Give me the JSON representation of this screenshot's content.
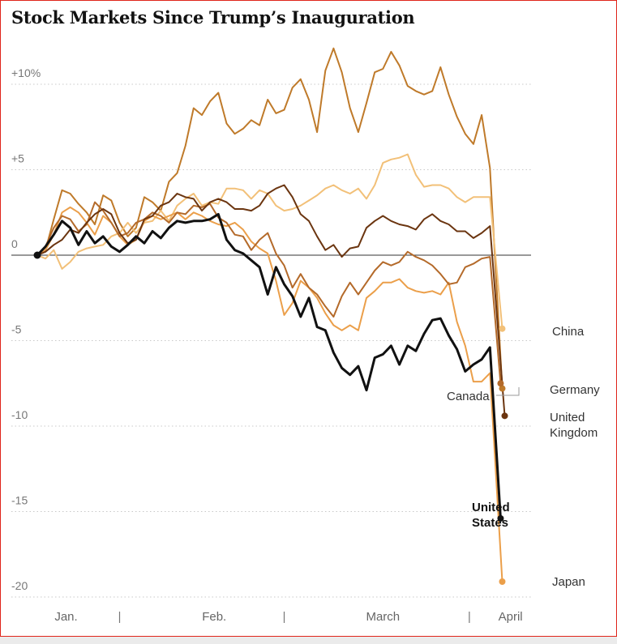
{
  "chart_data": {
    "type": "line",
    "title": "Stock Markets Since Trump’s Inauguration",
    "ylim": [
      -20.8,
      12.2
    ],
    "xlim": [
      0,
      60
    ],
    "y_ticks": [
      {
        "value": 10,
        "label": "+10%"
      },
      {
        "value": 5,
        "label": "+5"
      },
      {
        "value": 0,
        "label": "0"
      },
      {
        "value": -5,
        "label": "-5"
      },
      {
        "value": -10,
        "label": "-10"
      },
      {
        "value": -15,
        "label": "-15"
      },
      {
        "value": -20,
        "label": "-20"
      }
    ],
    "x_month_labels": [
      {
        "x": 3.5,
        "label": "Jan."
      },
      {
        "x": 21.5,
        "label": "Feb."
      },
      {
        "x": 42,
        "label": "March"
      },
      {
        "x": 57.5,
        "label": "April"
      }
    ],
    "x_dividers": [
      10,
      30,
      52.5
    ],
    "grid": "dotted horizontal",
    "colors": {
      "China": "#f2c078",
      "Japan": "#eb9f4a",
      "Germany": "#bf7a2a",
      "Canada": "#b46a2a",
      "United Kingdom": "#6b3510",
      "United States": "#111111",
      "zero_line": "#333333",
      "grid": "#c8c8c8"
    },
    "series": [
      {
        "name": "Germany",
        "x": [
          0,
          1,
          2,
          3,
          4,
          5,
          6,
          7,
          8,
          9,
          10,
          11,
          12,
          13,
          14,
          15,
          16,
          17,
          18,
          19,
          20,
          21,
          22,
          23,
          24,
          25,
          26,
          27,
          28,
          29,
          30,
          31,
          32,
          33,
          34,
          35,
          36,
          37,
          38,
          39,
          40,
          41,
          42,
          43,
          44,
          45,
          46,
          47,
          48,
          49,
          50,
          51,
          52,
          53,
          54,
          55
        ],
        "values": [
          0,
          0.3,
          2.1,
          3.8,
          3.6,
          3,
          2.5,
          1.8,
          3.5,
          3.2,
          1.9,
          1.1,
          1.6,
          3.4,
          3.1,
          2.6,
          4.3,
          4.8,
          6.4,
          8.6,
          8.2,
          9.0,
          9.5,
          7.7,
          7.1,
          7.4,
          7.9,
          7.6,
          9.1,
          8.3,
          8.5,
          9.8,
          10.3,
          9.1,
          7.2,
          10.8,
          12.1,
          10.7,
          8.6,
          7.2,
          8.9,
          10.7,
          10.9,
          11.9,
          11.1,
          9.9,
          9.6,
          9.4,
          9.6,
          11.0,
          9.4,
          8.1,
          7.1,
          6.5,
          8.2,
          5.1
        ],
        "end": {
          "x": 56.5,
          "y": -7.8
        }
      },
      {
        "name": "China",
        "x": [
          0,
          1,
          2,
          3,
          4,
          5,
          6,
          7,
          8,
          9,
          10,
          11,
          12,
          13,
          14,
          15,
          16,
          17,
          18,
          19,
          20,
          21,
          22,
          23,
          24,
          25,
          26,
          27,
          28,
          29,
          30,
          31,
          32,
          33,
          34,
          35,
          36,
          37,
          38,
          39,
          40,
          41,
          42,
          43,
          44,
          45,
          46,
          47,
          48,
          49,
          50,
          51,
          52,
          53,
          54,
          55
        ],
        "values": [
          0,
          -0.2,
          0.3,
          -0.8,
          -0.4,
          0.2,
          0.4,
          0.5,
          0.6,
          1.1,
          1.3,
          1.9,
          1.3,
          1.9,
          2.0,
          2.6,
          2.0,
          2.9,
          3.3,
          3.6,
          2.9,
          3.1,
          3.0,
          3.9,
          3.9,
          3.8,
          3.3,
          3.8,
          3.6,
          2.9,
          2.6,
          2.7,
          2.9,
          3.2,
          3.5,
          3.9,
          4.1,
          3.8,
          3.6,
          3.9,
          3.3,
          4.1,
          5.4,
          5.6,
          5.7,
          5.9,
          4.7,
          4.0,
          4.1,
          4.1,
          3.9,
          3.4,
          3.1,
          3.4,
          3.4,
          3.4
        ],
        "end": {
          "x": 56.5,
          "y": -4.3
        }
      },
      {
        "name": "Japan",
        "x": [
          0,
          1,
          2,
          3,
          4,
          5,
          6,
          7,
          8,
          9,
          10,
          11,
          12,
          13,
          14,
          15,
          16,
          17,
          18,
          19,
          20,
          21,
          22,
          23,
          24,
          25,
          26,
          27,
          28,
          29,
          30,
          31,
          32,
          33,
          34,
          35,
          36,
          37,
          38,
          39,
          40,
          41,
          42,
          43,
          44,
          45,
          46,
          47,
          48,
          49,
          50,
          51,
          52,
          53,
          54,
          55
        ],
        "values": [
          0,
          0.3,
          1.2,
          2.5,
          2.8,
          2.5,
          1.9,
          1.2,
          2.3,
          1.9,
          1.1,
          0.6,
          0.9,
          2.0,
          2.3,
          2.1,
          2.3,
          2.5,
          2.1,
          2.5,
          2.3,
          2.0,
          1.8,
          1.7,
          1.9,
          1.5,
          0.8,
          0.4,
          0.1,
          -1.5,
          -3.5,
          -2.8,
          -1.5,
          -1.9,
          -2.5,
          -3.4,
          -4.1,
          -4.4,
          -4.1,
          -4.4,
          -2.5,
          -2.1,
          -1.6,
          -1.6,
          -1.4,
          -1.9,
          -2.1,
          -2.2,
          -2.1,
          -2.3,
          -1.6,
          -3.9,
          -5.3,
          -7.4,
          -7.4,
          -6.9
        ],
        "end": {
          "x": 56.5,
          "y": -19.1
        }
      },
      {
        "name": "Canada",
        "x": [
          0,
          1,
          2,
          3,
          4,
          5,
          6,
          7,
          8,
          9,
          10,
          11,
          12,
          13,
          14,
          15,
          16,
          17,
          18,
          19,
          20,
          21,
          22,
          23,
          24,
          25,
          26,
          27,
          28,
          29,
          30,
          31,
          32,
          33,
          34,
          35,
          36,
          37,
          38,
          39,
          40,
          41,
          42,
          43,
          44,
          45,
          46,
          47,
          48,
          49,
          50,
          51,
          52,
          53,
          54,
          55
        ],
        "values": [
          0,
          0.5,
          1.6,
          2.3,
          2.1,
          1.4,
          1.8,
          3.1,
          2.6,
          1.9,
          1.1,
          1.3,
          1.9,
          2.1,
          2.5,
          2.3,
          1.9,
          2.5,
          2.4,
          2.9,
          2.8,
          3.0,
          2.2,
          1.9,
          1.2,
          1.1,
          0.3,
          0.9,
          1.3,
          0.1,
          -0.6,
          -1.9,
          -1.1,
          -1.9,
          -2.3,
          -3.0,
          -3.6,
          -2.4,
          -1.6,
          -2.3,
          -1.6,
          -0.9,
          -0.4,
          -0.6,
          -0.4,
          0.2,
          -0.1,
          -0.3,
          -0.6,
          -1.1,
          -1.7,
          -1.6,
          -0.7,
          -0.5,
          -0.2,
          -0.1
        ],
        "end": {
          "x": 56.3,
          "y": -7.5
        }
      },
      {
        "name": "United Kingdom",
        "x": [
          0,
          1,
          2,
          3,
          4,
          5,
          6,
          7,
          8,
          9,
          10,
          11,
          12,
          13,
          14,
          15,
          16,
          17,
          18,
          19,
          20,
          21,
          22,
          23,
          24,
          25,
          26,
          27,
          28,
          29,
          30,
          31,
          32,
          33,
          34,
          35,
          36,
          37,
          38,
          39,
          40,
          41,
          42,
          43,
          44,
          45,
          46,
          47,
          48,
          49,
          50,
          51,
          52,
          53,
          54,
          55
        ],
        "values": [
          0,
          0.2,
          0.6,
          0.9,
          1.5,
          1.3,
          1.9,
          2.4,
          2.7,
          2.4,
          1.3,
          0.7,
          0.9,
          2.1,
          2.3,
          2.9,
          3.1,
          3.6,
          3.4,
          3.3,
          2.6,
          3.1,
          3.3,
          3.1,
          2.7,
          2.7,
          2.6,
          2.9,
          3.6,
          3.9,
          4.1,
          3.4,
          2.4,
          2.0,
          1.1,
          0.3,
          0.6,
          -0.1,
          0.4,
          0.5,
          1.6,
          2.0,
          2.3,
          2.0,
          1.8,
          1.7,
          1.5,
          2.1,
          2.4,
          2.0,
          1.8,
          1.4,
          1.4,
          1.0,
          1.3,
          1.7
        ],
        "end": {
          "x": 56.8,
          "y": -9.4
        }
      },
      {
        "name": "United States",
        "x": [
          0,
          1,
          2,
          3,
          4,
          5,
          6,
          7,
          8,
          9,
          10,
          11,
          12,
          13,
          14,
          15,
          16,
          17,
          18,
          19,
          20,
          21,
          22,
          23,
          24,
          25,
          26,
          27,
          28,
          29,
          30,
          31,
          32,
          33,
          34,
          35,
          36,
          37,
          38,
          39,
          40,
          41,
          42,
          43,
          44,
          45,
          46,
          47,
          48,
          49,
          50,
          51,
          52,
          53,
          54,
          55
        ],
        "values": [
          0,
          0.5,
          1.2,
          2.0,
          1.6,
          0.6,
          1.4,
          0.7,
          1.1,
          0.5,
          0.2,
          0.6,
          1.1,
          0.7,
          1.4,
          1.0,
          1.6,
          2.0,
          1.9,
          2.0,
          2.0,
          2.1,
          2.4,
          0.9,
          0.3,
          0.1,
          -0.3,
          -0.7,
          -2.3,
          -0.7,
          -1.7,
          -2.4,
          -3.6,
          -2.5,
          -4.2,
          -4.4,
          -5.7,
          -6.6,
          -7.0,
          -6.5,
          -7.9,
          -6.0,
          -5.8,
          -5.3,
          -6.4,
          -5.3,
          -5.6,
          -4.6,
          -3.8,
          -3.7,
          -4.7,
          -5.5,
          -6.8,
          -6.4,
          -6.1,
          -5.4
        ],
        "end": {
          "x": 56.3,
          "y": -15.4
        }
      }
    ],
    "labels": {
      "China": "China",
      "Germany": "Germany",
      "Canada": "Canada",
      "uk_line1": "United",
      "uk_line2": "Kingdom",
      "us_line1": "United",
      "us_line2": "States",
      "Japan": "Japan"
    }
  }
}
